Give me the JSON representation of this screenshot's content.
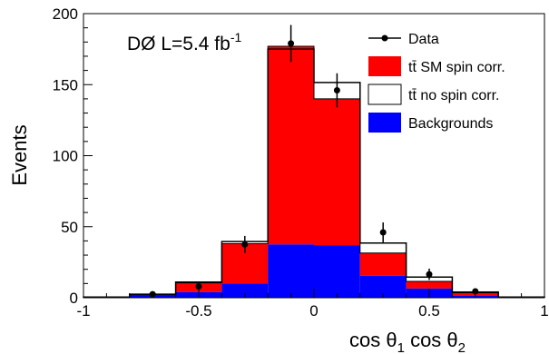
{
  "chart_data": {
    "type": "bar",
    "stacked": true,
    "bin_edges": [
      -1,
      -0.8,
      -0.6,
      -0.4,
      -0.2,
      0,
      0.2,
      0.4,
      0.6,
      0.8,
      1
    ],
    "xlabel": {
      "prefix": "cos θ",
      "sub1": "1",
      "mid": " cos θ",
      "sub2": "2"
    },
    "ylabel": "Events",
    "xlim": [
      -1,
      1
    ],
    "ylim": [
      0,
      200
    ],
    "xticks": [
      {
        "v": -1,
        "label": "-1"
      },
      {
        "v": -0.5,
        "label": "-0.5"
      },
      {
        "v": 0,
        "label": "0"
      },
      {
        "v": 0.5,
        "label": "0.5"
      },
      {
        "v": 1,
        "label": "1"
      }
    ],
    "yticks": [
      {
        "v": 0,
        "label": "0"
      },
      {
        "v": 50,
        "label": "50"
      },
      {
        "v": 100,
        "label": "100"
      },
      {
        "v": 150,
        "label": "150"
      },
      {
        "v": 200,
        "label": "200"
      }
    ],
    "annotation": {
      "main": "DØ L=5.4 fb",
      "sup": "-1"
    },
    "colors": {
      "backgrounds": "#0000ff",
      "sm_spin_corr": "#ff0000",
      "no_spin_corr_line": "#000000",
      "data": "#000000"
    },
    "series": {
      "backgrounds": [
        0.5,
        2.5,
        4,
        10,
        37.5,
        37,
        15.5,
        6.5,
        1.5,
        0.5
      ],
      "sm_spin_corr_total": [
        0.5,
        2.5,
        10.5,
        38,
        177,
        140,
        31.5,
        11.5,
        3.5,
        0.5
      ],
      "no_spin_corr_total": [
        0.5,
        2.5,
        11,
        39.5,
        175,
        151.5,
        38.5,
        14.5,
        4,
        0.5
      ]
    },
    "data_points": [
      {
        "x": -0.7,
        "y": 2.5,
        "err": 1.5
      },
      {
        "x": -0.5,
        "y": 8,
        "err": 3
      },
      {
        "x": -0.3,
        "y": 37.5,
        "err": 6
      },
      {
        "x": -0.1,
        "y": 179,
        "err": 13
      },
      {
        "x": 0.1,
        "y": 146,
        "err": 12
      },
      {
        "x": 0.3,
        "y": 46,
        "err": 7
      },
      {
        "x": 0.5,
        "y": 16.5,
        "err": 4
      },
      {
        "x": 0.7,
        "y": 4.5,
        "err": 2
      }
    ],
    "legend": [
      {
        "key": "data",
        "label": "Data"
      },
      {
        "key": "sm",
        "label": "tt̄ SM spin corr."
      },
      {
        "key": "nosc",
        "label": "tt̄ no spin corr."
      },
      {
        "key": "bkg",
        "label": "Backgrounds"
      }
    ]
  }
}
